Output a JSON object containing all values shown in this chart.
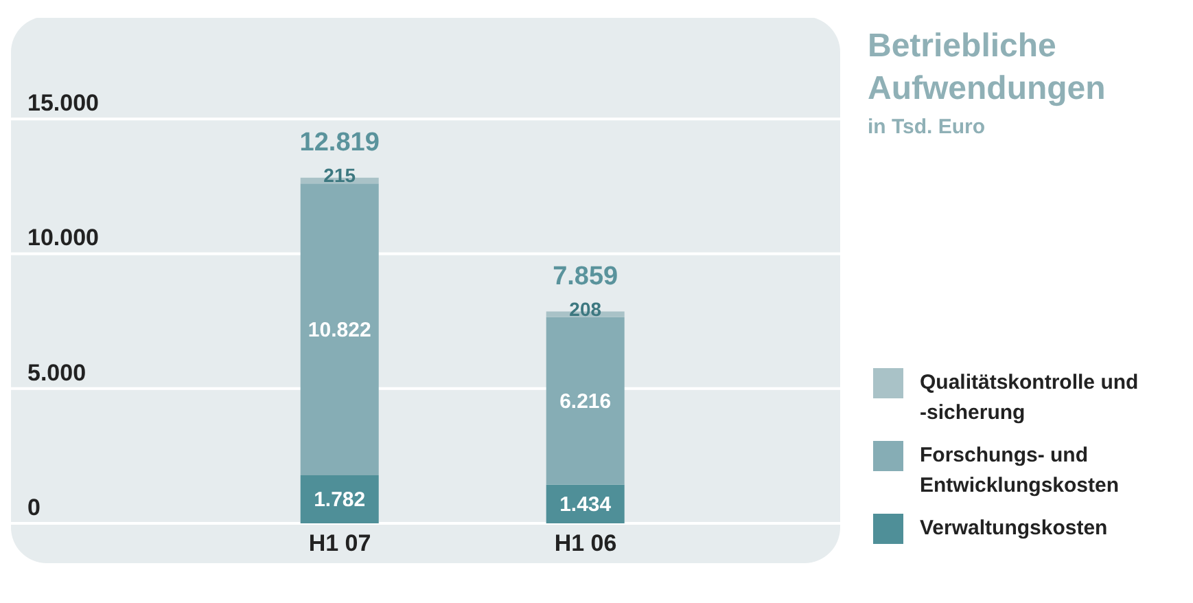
{
  "chart_data": {
    "type": "bar",
    "title": "Betriebliche Aufwendungen",
    "subtitle": "in Tsd. Euro",
    "categories": [
      "H1 07",
      "H1 06"
    ],
    "stacked": true,
    "totals": [
      "12.819",
      "7.859"
    ],
    "series": [
      {
        "name": "Verwaltungskosten",
        "color": "#4f8f98",
        "values": [
          1782,
          1434
        ],
        "value_labels": [
          "1.782",
          "1.434"
        ]
      },
      {
        "name": "Forschungs- und Entwicklungskosten",
        "color": "#86adb5",
        "values": [
          10822,
          6216
        ],
        "value_labels": [
          "10.822",
          "6.216"
        ]
      },
      {
        "name": "Qualitätskontrolle und -sicherung",
        "color": "#a9c2c7",
        "values": [
          215,
          208
        ],
        "value_labels": [
          "215",
          "208"
        ]
      }
    ],
    "ylim": [
      0,
      18800
    ],
    "yticks": [
      0,
      {
        "value": 5000,
        "label": "5.000"
      },
      {
        "value": 10000,
        "label": "10.000"
      },
      {
        "value": 15000,
        "label": "15.000"
      }
    ],
    "grid": "y",
    "legend": "bottom right"
  }
}
